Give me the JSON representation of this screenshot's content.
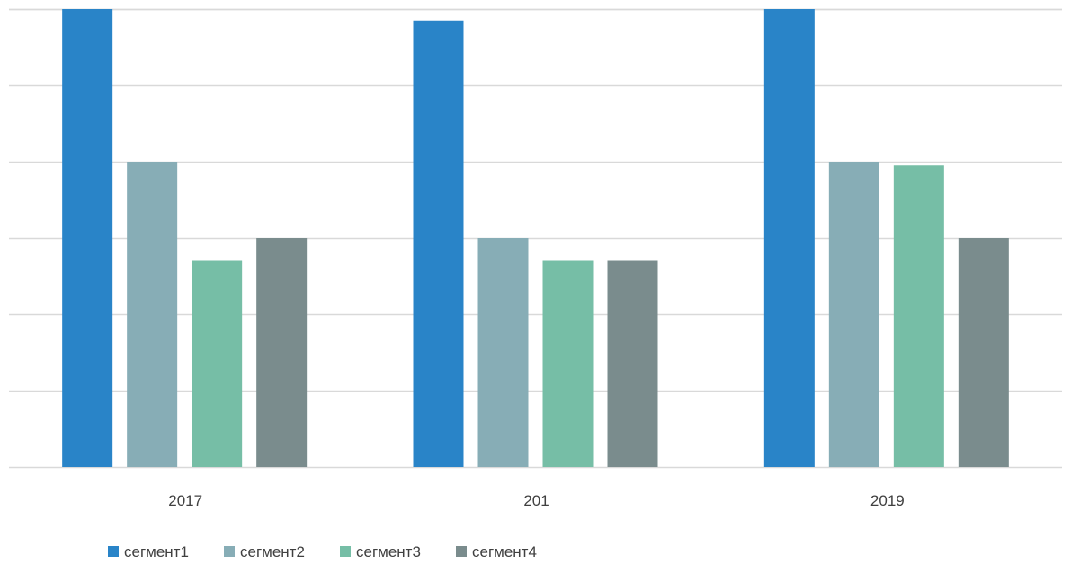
{
  "chart_data": {
    "type": "bar",
    "categories": [
      "2017",
      "201",
      "2019"
    ],
    "series": [
      {
        "name": "сегмент1",
        "color": "#2984C8",
        "values": [
          6,
          5.85,
          6
        ]
      },
      {
        "name": "сегмент2",
        "color": "#87ADB6",
        "values": [
          4,
          3,
          4
        ]
      },
      {
        "name": "сегмент3",
        "color": "#76BEA6",
        "values": [
          2.7,
          2.7,
          3.95
        ]
      },
      {
        "name": "сегмент4",
        "color": "#7A8C8D",
        "values": [
          3,
          2.7,
          3
        ]
      }
    ],
    "ylim": [
      0,
      6
    ],
    "ytick_values": [
      0,
      1,
      2,
      3,
      4,
      5,
      6
    ],
    "yaxis_labels_visible": false,
    "grid": true,
    "gridline_color": "#D9D9D9",
    "legend_position": "bottom-left"
  }
}
